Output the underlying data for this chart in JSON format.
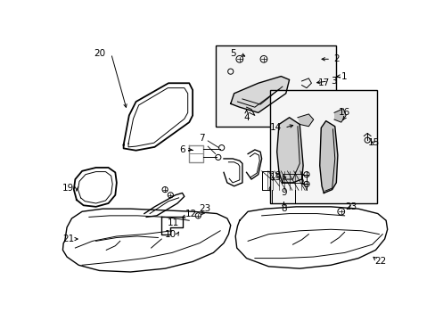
{
  "background_color": "#ffffff",
  "line_color": "#000000",
  "fig_width": 4.89,
  "fig_height": 3.6,
  "dpi": 100,
  "label_fontsize": 7.5,
  "arrow_color": "#000000"
}
